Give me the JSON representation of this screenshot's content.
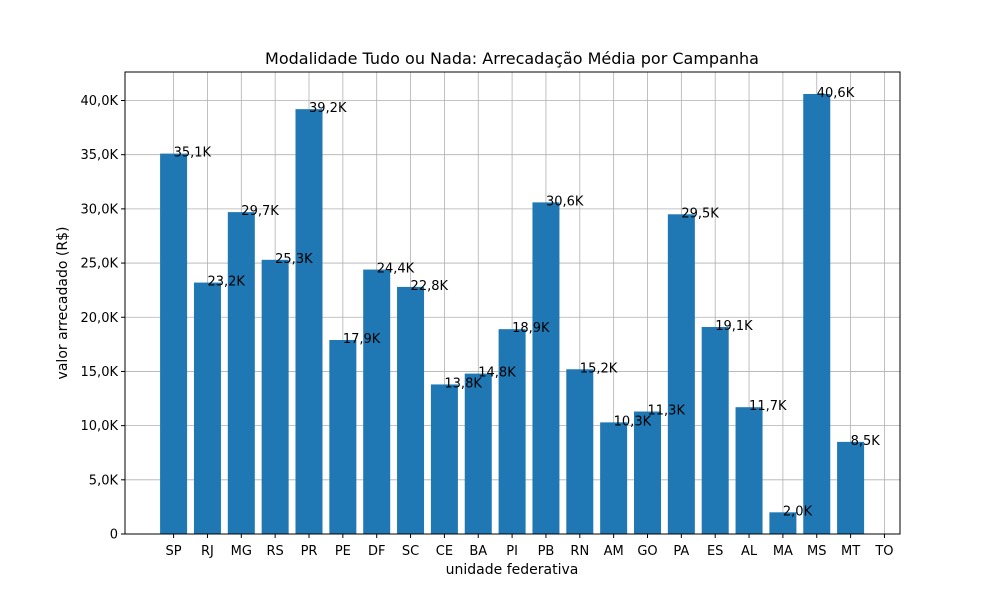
{
  "chart_data": {
    "type": "bar",
    "title": "Modalidade Tudo ou Nada: Arrecadação Média por Campanha",
    "xlabel": "unidade federativa",
    "ylabel": "valor arrecadado (R$)",
    "categories": [
      "SP",
      "RJ",
      "MG",
      "RS",
      "PR",
      "PE",
      "DF",
      "SC",
      "CE",
      "BA",
      "PI",
      "PB",
      "RN",
      "AM",
      "GO",
      "PA",
      "ES",
      "AL",
      "MA",
      "MS",
      "MT",
      "TO"
    ],
    "values": [
      35100,
      23200,
      29700,
      25300,
      39200,
      17900,
      24400,
      22800,
      13800,
      14800,
      18900,
      30600,
      15200,
      10300,
      11300,
      29500,
      19100,
      11700,
      2000,
      40600,
      8500,
      null
    ],
    "value_labels": [
      "35,1K",
      "23,2K",
      "29,7K",
      "25,3K",
      "39,2K",
      "17,9K",
      "24,4K",
      "22,8K",
      "13,8K",
      "14,8K",
      "18,9K",
      "30,6K",
      "15,2K",
      "10,3K",
      "11,3K",
      "29,5K",
      "19,1K",
      "11,7K",
      "2,0K",
      "40,6K",
      "8,5K",
      ""
    ],
    "ylim": [
      0,
      42630
    ],
    "yticks": [
      0,
      5000,
      10000,
      15000,
      20000,
      25000,
      30000,
      35000,
      40000
    ],
    "ytick_labels": [
      "0",
      "5,0K",
      "10,0K",
      "15,0K",
      "20,0K",
      "25,0K",
      "30,0K",
      "35,0K",
      "40,0K"
    ],
    "grid": true,
    "bar_color": "#1f77b4"
  }
}
